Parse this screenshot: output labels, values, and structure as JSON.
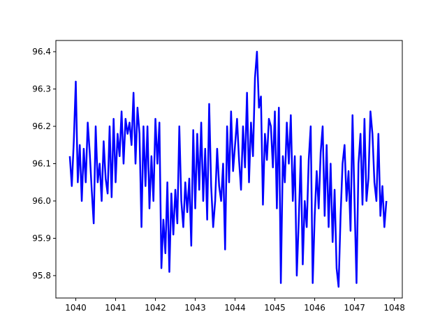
{
  "chart_data": {
    "type": "line",
    "title": "",
    "xlabel": "",
    "ylabel": "",
    "xlim": [
      1039.5,
      1048.2
    ],
    "ylim": [
      95.74,
      96.43
    ],
    "xticks": [
      1040,
      1041,
      1042,
      1043,
      1044,
      1045,
      1046,
      1047,
      1048
    ],
    "yticks": [
      95.8,
      95.9,
      96.0,
      96.1,
      96.2,
      96.3,
      96.4
    ],
    "ytick_labels": [
      "95.8",
      "95.9",
      "96.0",
      "96.1",
      "96.2",
      "96.3",
      "96.4"
    ],
    "grid": false,
    "legend": "none",
    "series": [
      {
        "color": "#0000ff",
        "x": [
          1039.85,
          1039.9,
          1039.95,
          1040.0,
          1040.05,
          1040.1,
          1040.15,
          1040.2,
          1040.25,
          1040.3,
          1040.35,
          1040.4,
          1040.45,
          1040.5,
          1040.55,
          1040.6,
          1040.65,
          1040.7,
          1040.75,
          1040.8,
          1040.85,
          1040.9,
          1040.95,
          1041.0,
          1041.05,
          1041.1,
          1041.15,
          1041.2,
          1041.25,
          1041.3,
          1041.35,
          1041.4,
          1041.45,
          1041.5,
          1041.55,
          1041.6,
          1041.65,
          1041.7,
          1041.75,
          1041.8,
          1041.85,
          1041.9,
          1041.95,
          1042.0,
          1042.05,
          1042.1,
          1042.15,
          1042.2,
          1042.25,
          1042.3,
          1042.35,
          1042.4,
          1042.45,
          1042.5,
          1042.55,
          1042.6,
          1042.65,
          1042.7,
          1042.75,
          1042.8,
          1042.85,
          1042.9,
          1042.95,
          1043.0,
          1043.05,
          1043.1,
          1043.15,
          1043.2,
          1043.25,
          1043.3,
          1043.35,
          1043.4,
          1043.45,
          1043.5,
          1043.55,
          1043.6,
          1043.65,
          1043.7,
          1043.75,
          1043.8,
          1043.85,
          1043.9,
          1043.95,
          1044.0,
          1044.05,
          1044.1,
          1044.15,
          1044.2,
          1044.25,
          1044.3,
          1044.35,
          1044.4,
          1044.45,
          1044.5,
          1044.55,
          1044.6,
          1044.65,
          1044.7,
          1044.75,
          1044.8,
          1044.85,
          1044.9,
          1044.95,
          1045.0,
          1045.05,
          1045.1,
          1045.15,
          1045.2,
          1045.25,
          1045.3,
          1045.35,
          1045.4,
          1045.45,
          1045.5,
          1045.55,
          1045.6,
          1045.65,
          1045.7,
          1045.75,
          1045.8,
          1045.85,
          1045.9,
          1045.95,
          1046.0,
          1046.05,
          1046.1,
          1046.15,
          1046.2,
          1046.25,
          1046.3,
          1046.35,
          1046.4,
          1046.45,
          1046.5,
          1046.55,
          1046.6,
          1046.65,
          1046.7,
          1046.75,
          1046.8,
          1046.85,
          1046.9,
          1046.95,
          1047.0,
          1047.05,
          1047.1,
          1047.15,
          1047.2,
          1047.25,
          1047.3,
          1047.35,
          1047.4,
          1047.45,
          1047.5,
          1047.55,
          1047.6,
          1047.65,
          1047.7,
          1047.75,
          1047.8
        ],
        "y": [
          96.12,
          96.04,
          96.16,
          96.32,
          96.05,
          96.15,
          96.0,
          96.14,
          96.05,
          96.21,
          96.13,
          96.03,
          95.94,
          96.2,
          96.05,
          96.1,
          96.0,
          96.16,
          96.06,
          96.02,
          96.2,
          96.01,
          96.22,
          96.05,
          96.18,
          96.12,
          96.24,
          96.1,
          96.22,
          96.18,
          96.21,
          96.15,
          96.29,
          96.1,
          96.25,
          96.18,
          95.93,
          96.2,
          96.04,
          96.2,
          95.98,
          96.12,
          96.0,
          96.22,
          96.1,
          96.21,
          95.82,
          95.95,
          95.86,
          96.05,
          95.81,
          96.02,
          95.91,
          96.03,
          95.94,
          96.2,
          96.0,
          95.93,
          96.05,
          95.97,
          96.06,
          95.88,
          96.19,
          95.98,
          96.18,
          96.03,
          96.21,
          96.0,
          96.14,
          95.95,
          96.26,
          96.04,
          95.93,
          96.0,
          96.14,
          96.04,
          96.0,
          96.1,
          95.87,
          96.2,
          96.05,
          96.24,
          96.08,
          96.15,
          96.22,
          96.11,
          96.03,
          96.2,
          96.09,
          96.29,
          96.05,
          96.21,
          96.12,
          96.33,
          96.4,
          96.25,
          96.28,
          95.99,
          96.18,
          96.11,
          96.22,
          96.2,
          96.09,
          96.24,
          95.98,
          96.25,
          95.78,
          96.12,
          96.05,
          96.21,
          96.1,
          96.23,
          96.0,
          96.12,
          95.8,
          95.95,
          96.12,
          95.83,
          96.0,
          95.93,
          96.11,
          96.2,
          95.78,
          95.96,
          96.08,
          95.98,
          96.13,
          96.2,
          95.96,
          96.15,
          95.93,
          96.1,
          95.89,
          96.03,
          95.82,
          95.77,
          95.96,
          96.1,
          96.15,
          96.0,
          96.08,
          95.92,
          96.23,
          96.0,
          95.78,
          96.1,
          96.18,
          95.99,
          96.22,
          96.0,
          96.06,
          96.24,
          96.18,
          96.05,
          96.0,
          96.18,
          95.96,
          96.04,
          95.93,
          96.0
        ]
      }
    ]
  }
}
